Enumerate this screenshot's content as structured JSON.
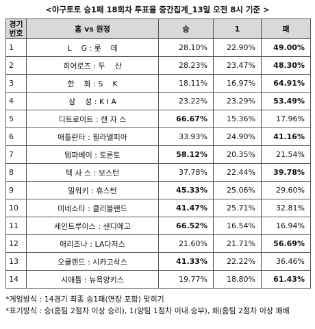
{
  "title": "<야구토토 승1패 18회차 투표율 중간집계_13일 오전 8시 기준 >",
  "table": {
    "header": [
      "경기\n번호",
      "홈 vs 원정",
      "승",
      "1",
      "패"
    ],
    "rows": [
      [
        "1",
        "L    G : 롯    데",
        "28.10%",
        "22.90%",
        "49.00%"
      ],
      [
        "2",
        "히어로즈 : 두    산",
        "28.23%",
        "23.47%",
        "48.30%"
      ],
      [
        "3",
        "한    화 : S    K",
        "18.11%",
        "16.97%",
        "64.91%"
      ],
      [
        "4",
        "삼    성 : K I A",
        "23.22%",
        "23.29%",
        "53.49%"
      ],
      [
        "5",
        "디트로이트 : 캔 자 스",
        "66.67%",
        "15.36%",
        "17.96%"
      ],
      [
        "6",
        "애틀란타 : 필라델피아",
        "33.93%",
        "24.90%",
        "41.16%"
      ],
      [
        "7",
        "탬파베이 : 토론토",
        "58.12%",
        "20.35%",
        "21.54%"
      ],
      [
        "8",
        "텍 사 스 : 보스턴",
        "37.78%",
        "22.44%",
        "39.78%"
      ],
      [
        "9",
        "밀워키 : 휴스턴",
        "45.33%",
        "25.06%",
        "29.60%"
      ],
      [
        "10",
        "미네소타 : 클리블랜드",
        "41.47%",
        "25.71%",
        "32.81%"
      ],
      [
        "11",
        "세인트루이스 : 샌디에고",
        "66.52%",
        "16.54%",
        "16.94%"
      ],
      [
        "12",
        "애리조나 : LA다저스",
        "21.60%",
        "21.71%",
        "56.69%"
      ],
      [
        "13",
        "오클랜드 : 시카고삭스",
        "41.33%",
        "22.22%",
        "36.46%"
      ],
      [
        "14",
        "시애틀 : 뉴욕양키스",
        "19.77%",
        "18.80%",
        "61.43%"
      ]
    ],
    "bold_column": [
      4,
      4,
      4,
      4,
      2,
      4,
      2,
      4,
      2,
      2,
      2,
      4,
      2,
      4
    ]
  },
  "notes": [
    "*게임방식 : 14경기 최종 승1패(연장 포함) 맞히기",
    "*표기방식 : 승(홈팀 2점차 이상 승리), 1(양팀 1점차 이내 승부), 패(홈팀 2점차 이상 패배"
  ]
}
